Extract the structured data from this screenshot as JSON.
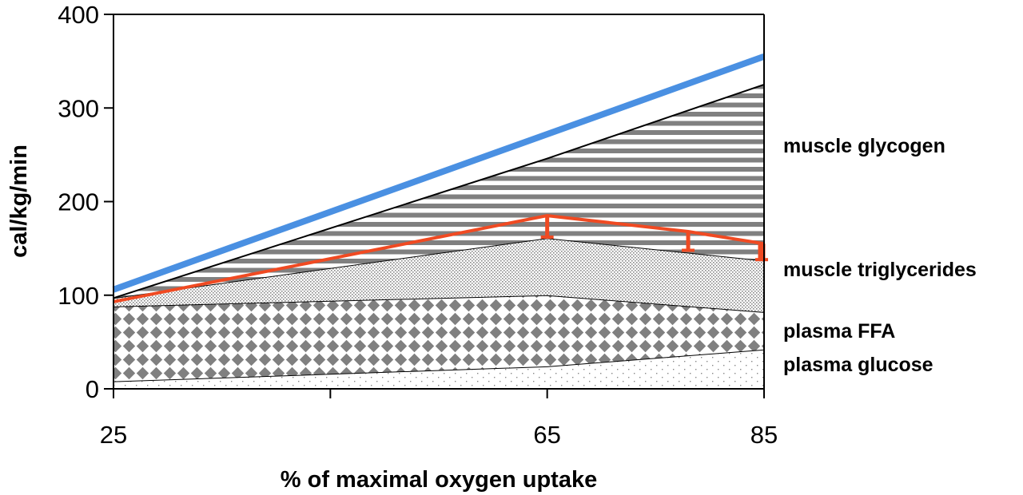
{
  "chart_data": {
    "type": "area",
    "xlabel": "% of maximal oxygen uptake",
    "ylabel": "cal/kg/min",
    "ylim": [
      0,
      400
    ],
    "xlim": [
      25,
      85
    ],
    "x": [
      25,
      65,
      85
    ],
    "x_ticks": [
      25,
      45,
      65,
      85
    ],
    "x_tick_labels": [
      "25",
      "",
      "65",
      "85"
    ],
    "y_ticks": [
      0,
      100,
      200,
      300,
      400
    ],
    "y_tick_labels": [
      "0",
      "100",
      "200",
      "300",
      "400"
    ],
    "grid": false,
    "stacked_areas": [
      {
        "name": "plasma glucose",
        "values": [
          8,
          24,
          42
        ],
        "pattern": "dots-light"
      },
      {
        "name": "plasma FFA",
        "values": [
          80,
          76,
          40
        ],
        "pattern": "diamonds"
      },
      {
        "name": "muscle triglycerides",
        "values": [
          9,
          61,
          55
        ],
        "pattern": "dots-dense"
      },
      {
        "name": "muscle glycogen",
        "values": [
          0,
          85,
          188
        ],
        "pattern": "horizontal-stripes"
      }
    ],
    "lines": [
      {
        "name": "",
        "x": [
          25,
          85
        ],
        "values": [
          106,
          355
        ],
        "color": "#4a90e2"
      },
      {
        "name": "",
        "x": [
          25,
          65,
          78,
          85
        ],
        "values": [
          93,
          185,
          168,
          155
        ],
        "color": "#f04a22",
        "error_bars": [
          {
            "x": 65,
            "low": 162,
            "high": 185
          },
          {
            "x": 78,
            "low": 148,
            "high": 168
          },
          {
            "x": 85,
            "low": 138,
            "high": 155
          }
        ]
      }
    ],
    "colors": {
      "pattern": "#808080",
      "outline": "#000000",
      "blue_line": "#4a90e2",
      "red_line": "#f04a22"
    }
  }
}
